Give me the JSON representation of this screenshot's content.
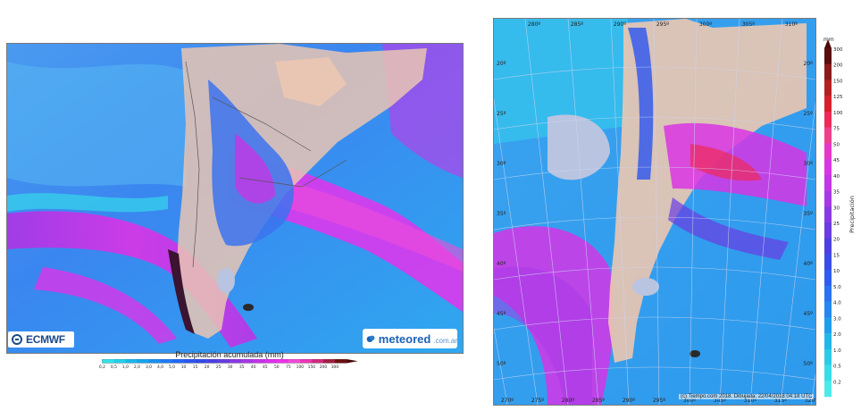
{
  "left_panel": {
    "logo_left": "ECMWF",
    "logo_right": "meteored",
    "logo_right_suffix": ".com.ar",
    "legend_title": "Precipitación acumulada (mm)",
    "legend_ticks": [
      "0,2",
      "0,5",
      "1,0",
      "2,0",
      "3,0",
      "4,0",
      "5,0",
      "10",
      "15",
      "20",
      "25",
      "30",
      "35",
      "40",
      "45",
      "50",
      "75",
      "100",
      "150",
      "200",
      "300"
    ],
    "legend_colors": [
      "#33e3e8",
      "#22cfe8",
      "#1ab8ea",
      "#16a3ee",
      "#1a8ff2",
      "#1f7af4",
      "#2466f5",
      "#2a55f0",
      "#3048e6",
      "#4a3fe0",
      "#6a3be0",
      "#8a38e2",
      "#a835e6",
      "#c432ea",
      "#dc30ec",
      "#ee30ea",
      "#f24ad8",
      "#ea36b4",
      "#d02a80",
      "#a01e40",
      "#6a1010"
    ]
  },
  "right_panel": {
    "lon_labels_top": [
      "280º",
      "285º",
      "290º",
      "295º",
      "300º",
      "305º",
      "310º"
    ],
    "lon_labels_bottom": [
      "270º",
      "275º",
      "280º",
      "285º",
      "290º",
      "295º",
      "300º",
      "305º",
      "310º",
      "315º",
      "320º"
    ],
    "lat_labels_left": [
      "20º",
      "25º",
      "30º",
      "35º",
      "40º",
      "45º",
      "50º"
    ],
    "lat_labels_right": [
      "20º",
      "25º",
      "30º",
      "35º",
      "40º",
      "45º",
      "50º"
    ],
    "credit": "(c) Tiempo.com 2018. Dibujada: 22/04/2018 04:18 UTC",
    "scale_unit": "mm",
    "scale_axis_label": "Precipitación",
    "scale_ticks": [
      "300",
      "200",
      "150",
      "125",
      "100",
      "75",
      "50",
      "45",
      "40",
      "35",
      "30",
      "25",
      "20",
      "15",
      "10",
      "5.0",
      "4.0",
      "3.0",
      "2.0",
      "1.0",
      "0.5",
      "0.2"
    ],
    "scale_colors": [
      "#5a0d0d",
      "#8c1a1a",
      "#b52020",
      "#d8202a",
      "#ee2a58",
      "#f0408c",
      "#e837c8",
      "#d835e4",
      "#c336e6",
      "#a838e6",
      "#8a3ae4",
      "#6a3ce2",
      "#4c40e0",
      "#3a4ce8",
      "#2f5cf0",
      "#2a72f2",
      "#2488f0",
      "#1f9eee",
      "#22b6ea",
      "#2bcbe8",
      "#38dde9",
      "#4eeaea"
    ]
  }
}
